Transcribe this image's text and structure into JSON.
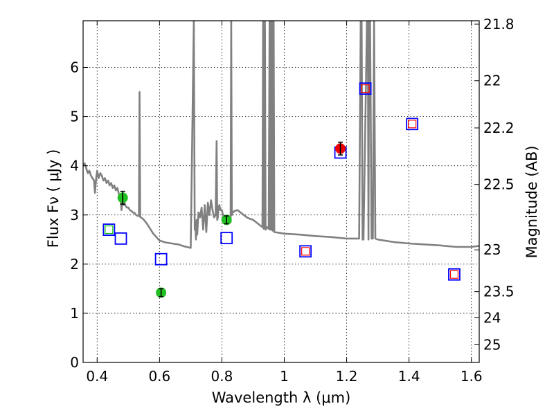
{
  "chart_data": {
    "type": "scatter",
    "title": "",
    "xlabel": "Wavelength  λ (μm)",
    "ylabel": "Flux  Fν  ( μJy )",
    "ylabel_right": "Magnitude (AB)",
    "xlim": [
      0.355,
      1.625
    ],
    "ylim": [
      0,
      6.95
    ],
    "grid": true,
    "x_ticks": [
      0.4,
      0.6,
      0.8,
      1.0,
      1.2,
      1.4,
      1.6
    ],
    "x_tick_labels": [
      "0.4",
      "0.6",
      "0.8",
      "1",
      "1.2",
      "1.4",
      "1.6"
    ],
    "y_ticks": [
      0,
      1,
      2,
      3,
      4,
      5,
      6
    ],
    "y_tick_labels": [
      "0",
      "1",
      "2",
      "3",
      "4",
      "5",
      "6"
    ],
    "right_ticks": [
      {
        "label": "21.8",
        "flux": 6.88
      },
      {
        "label": "22",
        "flux": 5.73
      },
      {
        "label": "22.2",
        "flux": 4.77
      },
      {
        "label": "22.5",
        "flux": 3.62
      },
      {
        "label": "23",
        "flux": 2.29
      },
      {
        "label": "23.5",
        "flux": 1.44
      },
      {
        "label": "24",
        "flux": 0.91
      },
      {
        "label": "25",
        "flux": 0.36
      }
    ],
    "colors": {
      "model_line": "#808080",
      "model_box": "#0000ff",
      "inner_box_red": "#ff0000",
      "inner_box_green": "#00c000",
      "obs_green": "#22c022",
      "obs_red": "#ee0000"
    },
    "series": [
      {
        "name": "model spectrum",
        "kind": "line",
        "x": [
          0.355,
          0.36,
          0.365,
          0.37,
          0.375,
          0.38,
          0.385,
          0.39,
          0.393,
          0.397,
          0.4,
          0.405,
          0.41,
          0.415,
          0.42,
          0.425,
          0.43,
          0.435,
          0.44,
          0.445,
          0.45,
          0.455,
          0.46,
          0.465,
          0.47,
          0.475,
          0.478,
          0.481,
          0.484,
          0.487,
          0.49,
          0.495,
          0.5,
          0.505,
          0.51,
          0.515,
          0.52,
          0.525,
          0.53,
          0.534,
          0.536,
          0.538,
          0.54,
          0.545,
          0.55,
          0.56,
          0.57,
          0.58,
          0.59,
          0.6,
          0.62,
          0.64,
          0.66,
          0.68,
          0.7,
          0.71,
          0.713,
          0.715,
          0.717,
          0.719,
          0.721,
          0.725,
          0.73,
          0.735,
          0.74,
          0.745,
          0.75,
          0.755,
          0.76,
          0.765,
          0.77,
          0.775,
          0.78,
          0.783,
          0.785,
          0.787,
          0.789,
          0.792,
          0.795,
          0.8,
          0.805,
          0.81,
          0.815,
          0.82,
          0.825,
          0.828,
          0.83,
          0.832,
          0.834,
          0.836,
          0.84,
          0.85,
          0.86,
          0.87,
          0.88,
          0.89,
          0.9,
          0.91,
          0.92,
          0.93,
          0.932,
          0.934,
          0.936,
          0.938,
          0.94,
          0.945,
          0.95,
          0.953,
          0.955,
          0.957,
          0.959,
          0.961,
          0.963,
          0.966,
          0.968,
          0.97,
          1.0,
          1.05,
          1.1,
          1.15,
          1.2,
          1.24,
          1.245,
          1.248,
          1.251,
          1.254,
          1.265,
          1.268,
          1.27,
          1.272,
          1.275,
          1.28,
          1.284,
          1.288,
          1.292,
          1.3,
          1.35,
          1.4,
          1.45,
          1.5,
          1.55,
          1.6,
          1.625
        ],
        "y": [
          4.0,
          4.05,
          3.95,
          3.85,
          3.9,
          3.8,
          3.75,
          3.7,
          3.45,
          3.75,
          3.9,
          3.75,
          3.85,
          3.8,
          3.7,
          3.75,
          3.65,
          3.7,
          3.6,
          3.65,
          3.55,
          3.6,
          3.5,
          3.55,
          3.42,
          3.35,
          3.1,
          3.3,
          3.2,
          3.25,
          3.2,
          3.15,
          3.15,
          3.1,
          3.08,
          3.05,
          3.04,
          3.0,
          2.98,
          2.98,
          5.5,
          2.96,
          2.95,
          2.93,
          2.9,
          2.82,
          2.72,
          2.62,
          2.55,
          2.48,
          2.44,
          2.42,
          2.4,
          2.36,
          2.33,
          6.95,
          2.7,
          2.85,
          2.5,
          2.9,
          2.6,
          3.05,
          2.95,
          3.15,
          2.7,
          3.2,
          2.65,
          3.25,
          3.0,
          3.3,
          3.1,
          2.95,
          3.0,
          4.5,
          2.9,
          2.95,
          3.15,
          3.2,
          3.1,
          3.1,
          2.95,
          2.95,
          2.95,
          2.88,
          2.85,
          2.85,
          6.95,
          3.0,
          3.05,
          3.05,
          3.08,
          3.1,
          3.05,
          3.0,
          2.95,
          2.92,
          2.9,
          2.85,
          2.8,
          2.75,
          6.95,
          2.72,
          2.8,
          6.95,
          2.7,
          2.75,
          2.72,
          6.95,
          2.7,
          6.95,
          2.7,
          6.95,
          2.68,
          6.95,
          2.65,
          2.65,
          2.62,
          2.6,
          2.57,
          2.55,
          2.52,
          2.52,
          6.95,
          6.95,
          2.5,
          2.5,
          6.95,
          6.95,
          2.5,
          6.95,
          6.95,
          2.52,
          2.52,
          6.95,
          2.52,
          2.5,
          2.45,
          2.42,
          2.4,
          2.38,
          2.35,
          2.35,
          2.37
        ]
      },
      {
        "name": "model photometry",
        "kind": "open-square",
        "x": [
          0.438,
          0.476,
          0.605,
          0.815,
          1.068,
          1.18,
          1.26,
          1.41,
          1.545
        ],
        "y": [
          2.7,
          2.52,
          2.1,
          2.53,
          2.26,
          4.27,
          5.57,
          4.85,
          1.79
        ]
      },
      {
        "name": "observed (filled, red inner box)",
        "kind": "inner-square",
        "x": [
          1.068,
          1.26,
          1.41,
          1.545
        ],
        "y": [
          2.26,
          5.57,
          4.85,
          1.79
        ]
      },
      {
        "name": "observed (green inner box)",
        "kind": "inner-square",
        "x": [
          0.438
        ],
        "y": [
          2.7
        ]
      },
      {
        "name": "observed flux (green)",
        "kind": "point-errorbar",
        "x": [
          0.482,
          0.605,
          0.815
        ],
        "y": [
          3.35,
          1.42,
          2.9
        ],
        "err": [
          0.13,
          0.08,
          0.08
        ]
      },
      {
        "name": "observed flux (red)",
        "kind": "point-errorbar",
        "x": [
          1.18
        ],
        "y": [
          4.35
        ],
        "err": [
          0.13
        ]
      }
    ]
  }
}
